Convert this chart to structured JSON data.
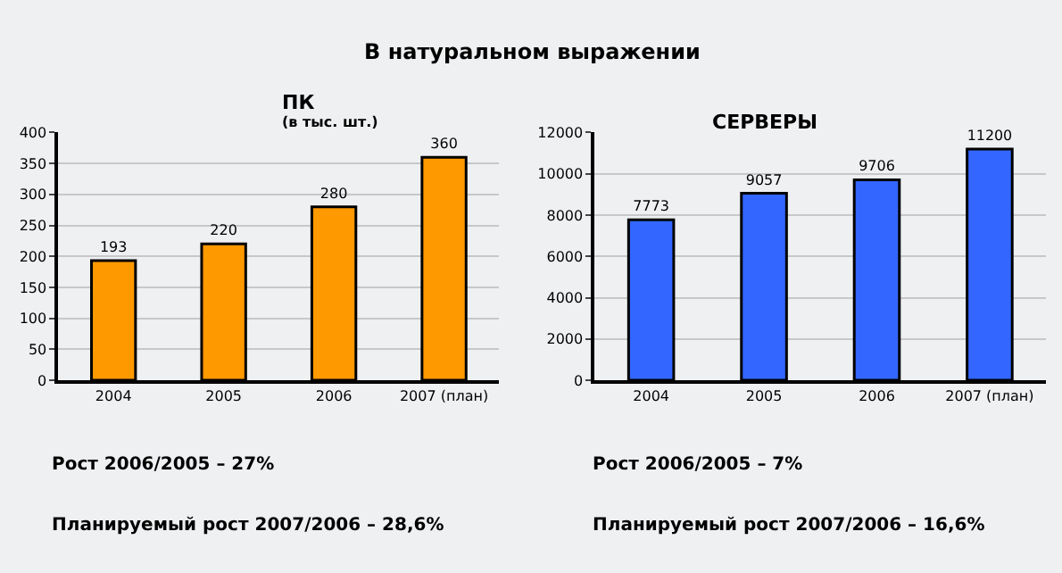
{
  "chart_data": [
    {
      "type": "bar",
      "title": "ПК",
      "subtitle": "(в тыс. шт.)",
      "categories": [
        "2004",
        "2005",
        "2006",
        "2007 (план)"
      ],
      "series": [
        {
          "color": "#ff9900",
          "values": [
            193,
            220,
            280,
            360
          ]
        }
      ],
      "ylim": [
        0,
        400
      ],
      "yticks": [
        0,
        50,
        100,
        150,
        200,
        250,
        300,
        350,
        400
      ],
      "grid": "y",
      "data_labels": true,
      "annotations": [
        "В натуральном выражении",
        "Рост 2006/2005 – 27%",
        "Планируемый рост 2007/2006 – 28,6%"
      ]
    },
    {
      "type": "bar",
      "title": "СЕРВЕРЫ",
      "categories": [
        "2004",
        "2005",
        "2006",
        "2007 (план)"
      ],
      "series": [
        {
          "color": "#3366ff",
          "values": [
            7773,
            9057,
            9706,
            11200
          ]
        }
      ],
      "ylim": [
        0,
        12000
      ],
      "yticks": [
        0,
        2000,
        4000,
        6000,
        8000,
        10000,
        12000
      ],
      "grid": "y",
      "data_labels": true,
      "annotations": [
        "Рост 2006/2005 – 7%",
        "Планируемый рост 2007/2006 – 16,6%"
      ]
    }
  ]
}
